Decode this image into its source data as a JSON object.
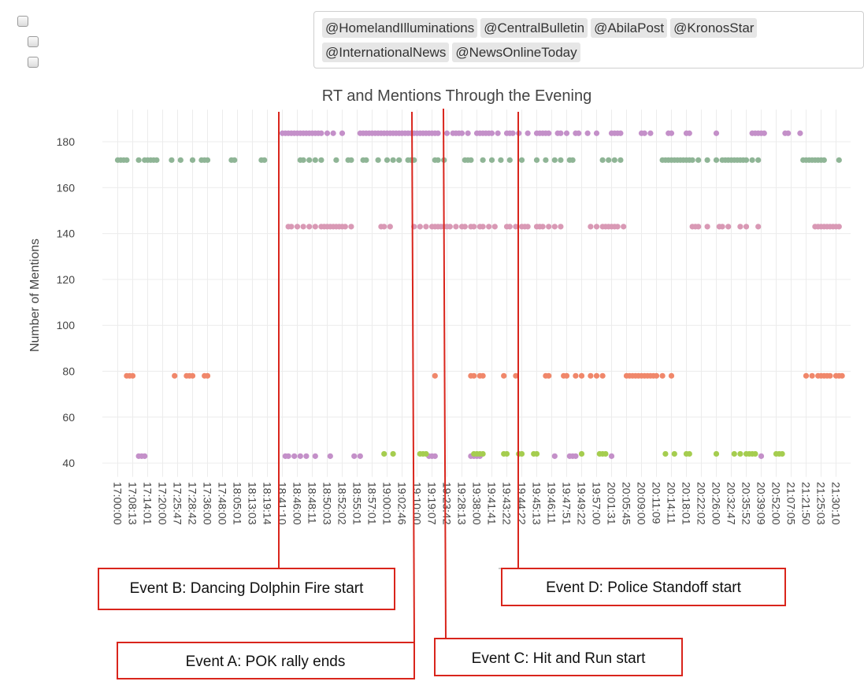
{
  "filters": {
    "checkboxes": [
      {
        "checked": false
      },
      {
        "checked": false
      },
      {
        "checked": false
      }
    ],
    "tags": [
      "@HomelandIlluminations",
      "@CentralBulletin",
      "@AbilaPost",
      "@KronosStar",
      "@InternationalNews",
      "@NewsOnlineToday"
    ]
  },
  "chart_data": {
    "type": "scatter",
    "title": "RT and Mentions Through the Evening",
    "ylabel": "Number of Mentions",
    "xlabel": "",
    "ylim": [
      34,
      194
    ],
    "yticks": [
      40,
      60,
      80,
      100,
      120,
      140,
      160,
      180
    ],
    "grid": true,
    "legend": "none",
    "x_categories": [
      "17:00:00",
      "17:08:13",
      "17:14:01",
      "17:20:00",
      "17:25:47",
      "17:28:42",
      "17:36:00",
      "17:48:00",
      "18:05:01",
      "18:13:03",
      "18:19:14",
      "18:41:10",
      "18:46:00",
      "18:48:11",
      "18:50:03",
      "18:52:02",
      "18:55:01",
      "18:57:01",
      "19:00:01",
      "19:02:46",
      "19:10:00",
      "19:19:07",
      "19:23:42",
      "19:28:13",
      "19:38:00",
      "19:41:41",
      "19:43:22",
      "19:44:22",
      "19:45:13",
      "19:46:11",
      "19:47:51",
      "19:49:22",
      "19:57:00",
      "20:01:31",
      "20:05:45",
      "20:09:00",
      "20:11:09",
      "20:14:11",
      "20:18:01",
      "20:22:02",
      "20:26:00",
      "20:32:47",
      "20:35:52",
      "20:39:09",
      "20:52:00",
      "21:07:05",
      "21:21:50",
      "21:25:03",
      "21:30:10"
    ],
    "series": [
      {
        "color": "#c490c9",
        "y": 183,
        "x": [
          11,
          11.2,
          11.4,
          11.6,
          11.8,
          12,
          12.2,
          12.4,
          12.6,
          12.8,
          13,
          13.2,
          13.4,
          13.6,
          14,
          14.4,
          15,
          16.2,
          16.4,
          16.6,
          16.8,
          17,
          17.2,
          17.4,
          17.6,
          17.8,
          18,
          18.2,
          18.4,
          18.6,
          18.8,
          19,
          19.2,
          19.4,
          19.6,
          19.8,
          20,
          20.2,
          20.4,
          20.6,
          20.8,
          21,
          21.2,
          21.4,
          22,
          22.4,
          22.6,
          22.8,
          23,
          23.4,
          24,
          24.2,
          24.4,
          24.6,
          24.8,
          25,
          25.4,
          26,
          26.2,
          26.4,
          26.8,
          27.4,
          28,
          28.2,
          28.4,
          28.6,
          28.8,
          29.4,
          29.6,
          30,
          30.6,
          30.8,
          31.4,
          32,
          33,
          33.2,
          33.4,
          33.6,
          35,
          35.2,
          35.6,
          36.8,
          37,
          38,
          38.2,
          40,
          42.4,
          42.6,
          42.8,
          43,
          43.2,
          44.6,
          44.8,
          45.6
        ]
      },
      {
        "color": "#8fb596",
        "y": 172,
        "x": [
          0,
          0.2,
          0.4,
          0.6,
          1.4,
          1.8,
          2,
          2.2,
          2.4,
          2.6,
          3.6,
          4.2,
          5,
          5.6,
          5.8,
          6,
          7.6,
          7.8,
          9.6,
          9.8,
          12.2,
          12.4,
          12.8,
          13.2,
          13.6,
          14.6,
          15.4,
          15.6,
          16.4,
          16.6,
          17.4,
          18,
          18.4,
          18.8,
          19.4,
          19.6,
          19.8,
          21.2,
          21.4,
          21.8,
          23.2,
          23.4,
          23.6,
          24.4,
          25,
          25.6,
          26.2,
          27,
          28,
          28.6,
          29.2,
          29.6,
          30.2,
          30.4,
          32.4,
          32.8,
          33.2,
          33.6,
          36.4,
          36.6,
          36.8,
          37,
          37.2,
          37.4,
          37.6,
          37.8,
          38,
          38.2,
          38.4,
          38.8,
          39.4,
          40,
          40.4,
          40.6,
          40.8,
          41,
          41.2,
          41.4,
          41.6,
          41.8,
          42,
          42.4,
          42.8,
          45.8,
          46,
          46.2,
          46.4,
          46.6,
          46.8,
          47,
          47.2,
          48.2
        ]
      },
      {
        "color": "#d999b5",
        "y": 143,
        "x": [
          11.4,
          11.6,
          12,
          12.4,
          12.8,
          13.2,
          13.6,
          13.8,
          14,
          14.2,
          14.4,
          14.6,
          14.8,
          15,
          15.2,
          15.6,
          17.6,
          17.8,
          18.2,
          19.8,
          20.2,
          20.6,
          21,
          21.2,
          21.4,
          21.6,
          21.8,
          22,
          22.2,
          22.6,
          23,
          23.2,
          23.6,
          23.8,
          24.2,
          24.4,
          24.8,
          25.2,
          26,
          26.2,
          26.6,
          27,
          27.2,
          27.4,
          28,
          28.2,
          28.4,
          28.8,
          29.2,
          29.6,
          31.6,
          32,
          32.4,
          32.6,
          32.8,
          33,
          33.2,
          33.4,
          33.8,
          38.4,
          38.6,
          38.8,
          39.4,
          40.2,
          40.4,
          40.8,
          41.6,
          42,
          42.8,
          46.6,
          46.8,
          47,
          47.2,
          47.4,
          47.6,
          47.8,
          48,
          48.2
        ]
      },
      {
        "color": "#f0876a",
        "y": 78,
        "x": [
          0.6,
          0.8,
          1,
          3.8,
          4.6,
          4.8,
          5,
          5.8,
          6,
          21.2,
          23.6,
          23.8,
          24.2,
          24.4,
          25.8,
          26.6,
          28.6,
          28.8,
          29.8,
          30,
          30.6,
          31,
          31.6,
          32,
          32.4,
          34,
          34.2,
          34.4,
          34.6,
          34.8,
          35,
          35.2,
          35.4,
          35.6,
          35.8,
          36,
          36.4,
          37,
          46,
          46.4,
          46.8,
          47,
          47.2,
          47.4,
          47.6,
          48,
          48.2,
          48.4
        ]
      },
      {
        "color": "#c490c9",
        "y": 43,
        "x": [
          1.4,
          1.6,
          1.8,
          11.2,
          11.4,
          11.8,
          12.2,
          12.6,
          13.2,
          14.2,
          15.8,
          16.2,
          20.8,
          21,
          21.2,
          23.6,
          23.8,
          24,
          24.2,
          29.2,
          30.2,
          30.4,
          30.6,
          33,
          43
        ]
      },
      {
        "color": "#a5cd4f",
        "y": 44,
        "x": [
          17.8,
          18.4,
          20.2,
          20.4,
          20.6,
          23.8,
          24,
          24.2,
          24.4,
          25.8,
          26,
          26.8,
          27,
          27.8,
          28,
          31,
          32.2,
          32.4,
          32.6,
          36.6,
          37.2,
          38,
          38.2,
          40,
          41.2,
          41.6,
          42,
          42.2,
          42.4,
          42.6,
          44,
          44.2,
          44.4
        ]
      }
    ]
  },
  "annotations": [
    {
      "label": "Event B: Dancing Dolphin Fire start"
    },
    {
      "label": "Event A: POK rally ends"
    },
    {
      "label": "Event C: Hit and Run start"
    },
    {
      "label": "Event D: Police Standoff start"
    }
  ],
  "colors": {
    "annotation": "#d9251c",
    "grid": "#ececec",
    "axis_text": "#444444"
  }
}
